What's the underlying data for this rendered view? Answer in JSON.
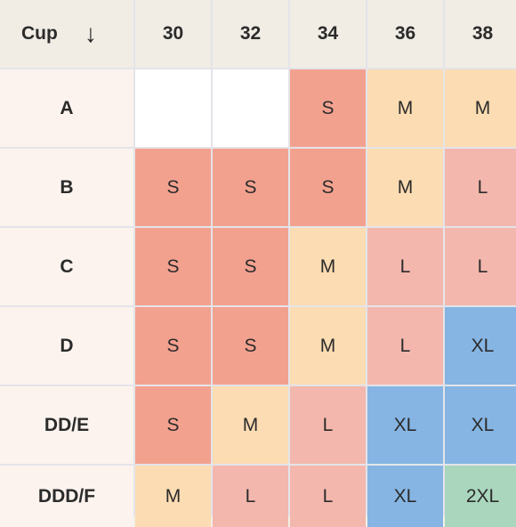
{
  "header": {
    "corner_label": "Cup",
    "sort_icon": "arrow-down-icon",
    "bands": [
      "30",
      "32",
      "34",
      "36",
      "38"
    ]
  },
  "rows": [
    {
      "cup": "A",
      "sizes": [
        "",
        "",
        "S",
        "M",
        "M"
      ]
    },
    {
      "cup": "B",
      "sizes": [
        "S",
        "S",
        "S",
        "M",
        "L"
      ]
    },
    {
      "cup": "C",
      "sizes": [
        "S",
        "S",
        "M",
        "L",
        "L"
      ]
    },
    {
      "cup": "D",
      "sizes": [
        "S",
        "S",
        "M",
        "L",
        "XL"
      ]
    },
    {
      "cup": "DD/E",
      "sizes": [
        "S",
        "M",
        "L",
        "XL",
        "XL"
      ]
    },
    {
      "cup": "DDD/F",
      "sizes": [
        "M",
        "L",
        "L",
        "XL",
        "2XL"
      ]
    }
  ],
  "edge_column_colors": [
    "#ffffff",
    "#86b5e3",
    "#86b5e3",
    "#86b5e3",
    "#a9d6bd",
    "#a9d6bd"
  ],
  "size_colors": {
    "S": "#f3a18f",
    "M": "#fcdcb2",
    "L": "#f3b7ad",
    "XL": "#86b5e3",
    "2XL": "#a9d6bd"
  }
}
